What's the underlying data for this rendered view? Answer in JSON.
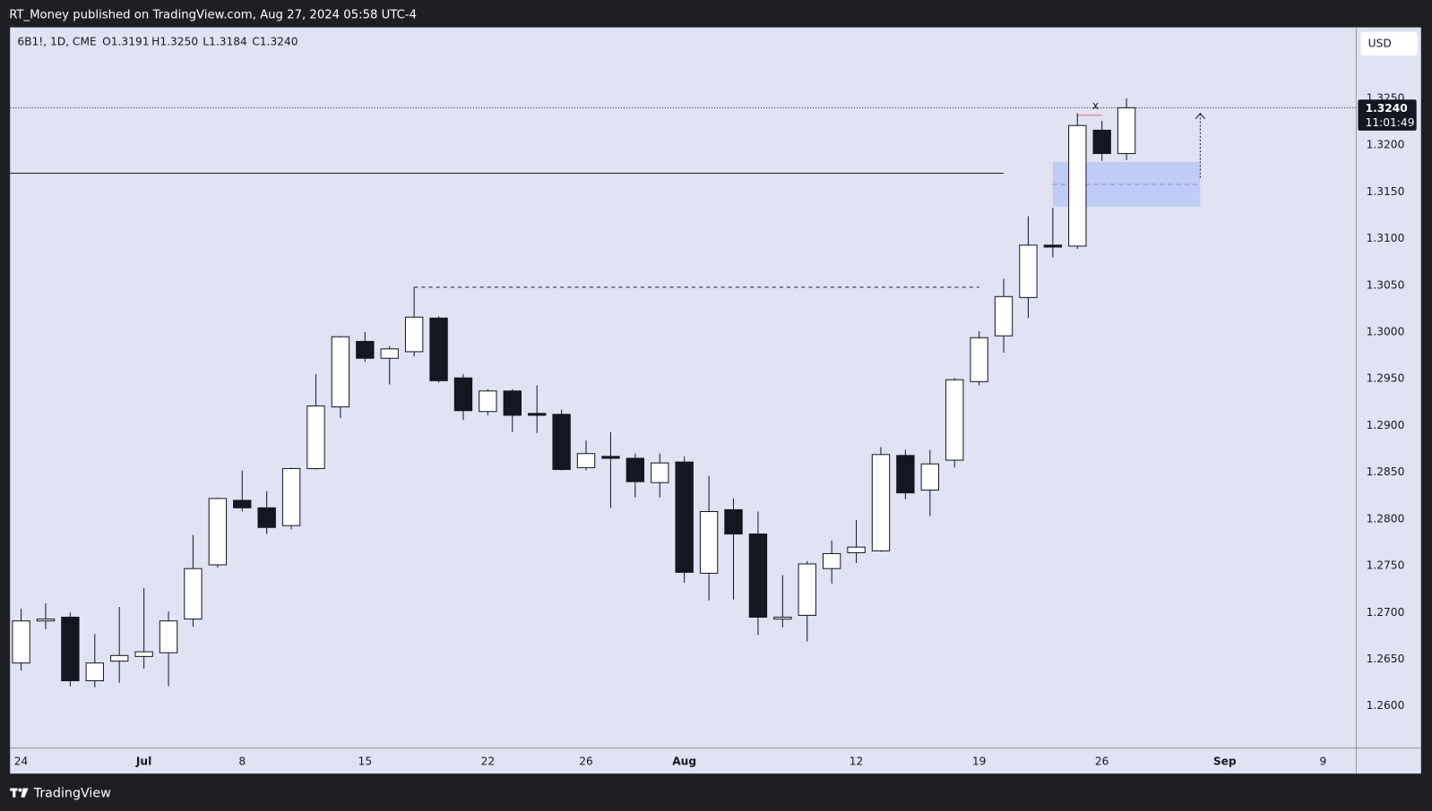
{
  "header": {
    "text": "RT_Money published on TradingView.com, Aug 27, 2024 05:58 UTC-4"
  },
  "footer": {
    "brand": "TradingView"
  },
  "chart_data": {
    "type": "candlestick",
    "legend_symbol": "6B1!, 1D, CME",
    "legend_ohlc": [
      "O1.3191",
      "H1.3250",
      "L1.3184",
      "C1.3240"
    ],
    "currency": "USD",
    "price_tag": {
      "value": 1.324,
      "label": "1.3240"
    },
    "countdown": "11:01:49",
    "up_color": "#ffffff",
    "down_color": "#131722",
    "border_color": "#131722",
    "grid": false,
    "xlim": [
      -0.45,
      54.35
    ],
    "ylim": [
      1.2555,
      1.3326
    ],
    "xticks": [
      {
        "value": 0,
        "label": "24"
      },
      {
        "value": 5,
        "label": "Jul"
      },
      {
        "value": 9,
        "label": "8"
      },
      {
        "value": 14,
        "label": "15"
      },
      {
        "value": 19,
        "label": "22"
      },
      {
        "value": 23,
        "label": "26"
      },
      {
        "value": 27,
        "label": "Aug"
      },
      {
        "value": 34,
        "label": "12"
      },
      {
        "value": 39,
        "label": "19"
      },
      {
        "value": 44,
        "label": "26"
      },
      {
        "value": 49,
        "label": "Sep"
      },
      {
        "value": 53,
        "label": "9"
      }
    ],
    "yticks": [
      {
        "value": 1.26,
        "label": "1.2600"
      },
      {
        "value": 1.265,
        "label": "1.2650"
      },
      {
        "value": 1.27,
        "label": "1.2700"
      },
      {
        "value": 1.275,
        "label": "1.2750"
      },
      {
        "value": 1.28,
        "label": "1.2800"
      },
      {
        "value": 1.285,
        "label": "1.2850"
      },
      {
        "value": 1.29,
        "label": "1.2900"
      },
      {
        "value": 1.295,
        "label": "1.2950"
      },
      {
        "value": 1.3,
        "label": "1.3000"
      },
      {
        "value": 1.305,
        "label": "1.3050"
      },
      {
        "value": 1.31,
        "label": "1.3100"
      },
      {
        "value": 1.315,
        "label": "1.3150"
      },
      {
        "value": 1.32,
        "label": "1.3200"
      },
      {
        "value": 1.325,
        "label": "1.3250"
      }
    ],
    "open": [
      1.2646,
      1.2691,
      1.2695,
      1.2627,
      1.2648,
      1.2653,
      1.2657,
      1.2693,
      1.2751,
      1.282,
      1.2812,
      1.2793,
      1.2854,
      1.292,
      1.299,
      1.2972,
      1.2979,
      1.3015,
      1.2951,
      1.2915,
      1.2937,
      1.2913,
      1.2912,
      1.2855,
      1.2867,
      1.2865,
      1.2839,
      1.2861,
      1.2742,
      1.281,
      1.2784,
      1.2693,
      1.2697,
      1.2747,
      1.2764,
      1.2766,
      1.2868,
      1.2831,
      1.2863,
      1.2947,
      1.2996,
      1.3037,
      1.3093,
      1.3092,
      1.3216,
      1.3191
    ],
    "high": [
      1.2704,
      1.271,
      1.27,
      1.2677,
      1.2706,
      1.2726,
      1.2701,
      1.2783,
      1.2823,
      1.2852,
      1.283,
      1.2855,
      1.2955,
      1.2996,
      1.3,
      1.2985,
      1.3048,
      1.3017,
      1.2955,
      1.2939,
      1.2939,
      1.2943,
      1.2917,
      1.2884,
      1.2893,
      1.287,
      1.287,
      1.2867,
      1.2846,
      1.2822,
      1.2808,
      1.274,
      1.2755,
      1.2777,
      1.2799,
      1.2877,
      1.2874,
      1.2874,
      1.2951,
      1.3001,
      1.3057,
      1.3124,
      1.3133,
      1.3234,
      1.3226,
      1.325
    ],
    "low": [
      1.2638,
      1.2682,
      1.2621,
      1.262,
      1.2625,
      1.264,
      1.2621,
      1.2685,
      1.2748,
      1.2808,
      1.2784,
      1.2789,
      1.2853,
      1.2908,
      1.2968,
      1.2944,
      1.2974,
      1.2946,
      1.2906,
      1.2911,
      1.2893,
      1.2892,
      1.2852,
      1.2852,
      1.2812,
      1.2823,
      1.2823,
      1.2732,
      1.2713,
      1.2714,
      1.2676,
      1.2684,
      1.2669,
      1.2731,
      1.2753,
      1.2765,
      1.2821,
      1.2803,
      1.2855,
      1.2943,
      1.2978,
      1.3015,
      1.308,
      1.3089,
      1.3183,
      1.3184
    ],
    "close": [
      1.2691,
      1.2693,
      1.2627,
      1.2646,
      1.2654,
      1.2658,
      1.2691,
      1.2747,
      1.2822,
      1.2812,
      1.2791,
      1.2854,
      1.2921,
      1.2995,
      1.2972,
      1.2982,
      1.3016,
      1.2948,
      1.2916,
      1.2937,
      1.2911,
      1.2911,
      1.2853,
      1.287,
      1.2865,
      1.284,
      1.286,
      1.2743,
      1.2808,
      1.2784,
      1.2695,
      1.2695,
      1.2752,
      1.2763,
      1.277,
      1.2869,
      1.2828,
      1.2859,
      1.2949,
      1.2994,
      1.3038,
      1.3093,
      1.3091,
      1.3221,
      1.3191,
      1.324
    ],
    "annotations": {
      "levels": [
        {
          "value": 1.317,
          "from": -0.45,
          "to": 40,
          "style": "solid"
        },
        {
          "value": 1.3048,
          "from": 16,
          "to": 39,
          "style": "dashed"
        }
      ],
      "zone": {
        "top": 1.3182,
        "bottom": 1.3134,
        "mid": 1.3158,
        "from": 42,
        "to": 48
      },
      "arrow": {
        "x": 48,
        "from": 1.3165,
        "to": 1.3234
      },
      "marker": {
        "text": "x",
        "value": 1.3232,
        "from": 43,
        "to": 44
      }
    }
  }
}
